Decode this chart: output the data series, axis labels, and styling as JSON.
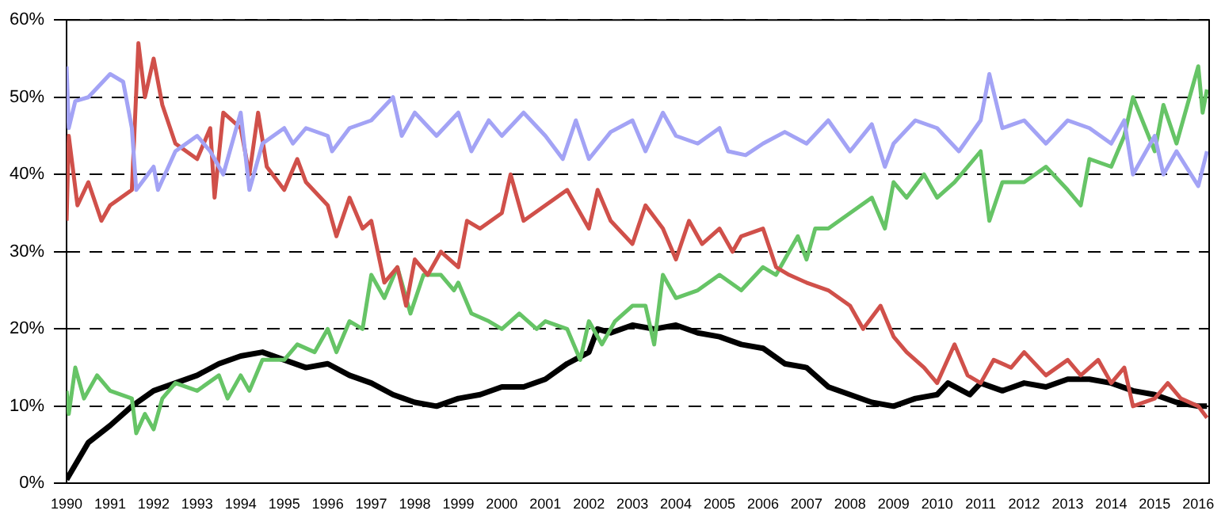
{
  "chart_data": {
    "type": "line",
    "xlim": [
      1990,
      2016.25
    ],
    "ylim": [
      0,
      60
    ],
    "xticks": [
      1990,
      1991,
      1992,
      1993,
      1994,
      1995,
      1996,
      1997,
      1998,
      1999,
      2000,
      2001,
      2002,
      2003,
      2004,
      2005,
      2006,
      2007,
      2008,
      2009,
      2010,
      2011,
      2012,
      2013,
      2014,
      2015,
      2016
    ],
    "yticks": [
      {
        "value": 0,
        "label": "0%"
      },
      {
        "value": 10,
        "label": "10%"
      },
      {
        "value": 20,
        "label": "20%"
      },
      {
        "value": 30,
        "label": "30%"
      },
      {
        "value": 40,
        "label": "40%"
      },
      {
        "value": 50,
        "label": "50%"
      },
      {
        "value": 60,
        "label": "60%"
      }
    ],
    "grid": "y",
    "legend": false,
    "marker": "none",
    "line_style": "solid",
    "series": [
      {
        "color": "#a3a3f5",
        "x": [
          1990,
          1990.05,
          1990.2,
          1990.5,
          1991,
          1991.3,
          1991.5,
          1991.6,
          1992,
          1992.1,
          1992.5,
          1993,
          1993.3,
          1993.6,
          1994,
          1994.2,
          1994.5,
          1995,
          1995.2,
          1995.5,
          1996,
          1996.1,
          1996.5,
          1997,
          1997.5,
          1997.7,
          1998,
          1998.5,
          1999,
          1999.3,
          1999.7,
          2000,
          2000.5,
          2001,
          2001.4,
          2001.7,
          2002,
          2002.5,
          2003,
          2003.3,
          2003.7,
          2004,
          2004.5,
          2005,
          2005.2,
          2005.6,
          2006,
          2006.5,
          2007,
          2007.5,
          2008,
          2008.5,
          2008.8,
          2009,
          2009.5,
          2010,
          2010.5,
          2011,
          2011.2,
          2011.5,
          2012,
          2012.5,
          2013,
          2013.5,
          2014,
          2014.3,
          2014.5,
          2015,
          2015.2,
          2015.5,
          2016,
          2016.2
        ],
        "values": [
          54,
          46,
          49.5,
          50,
          53,
          52,
          46,
          38,
          41,
          38,
          43,
          45,
          43,
          40,
          48,
          38,
          44,
          46,
          44,
          46,
          45,
          43,
          46,
          47,
          50,
          45,
          48,
          45,
          48,
          43,
          47,
          45,
          48,
          45,
          42,
          47,
          42,
          45.5,
          47,
          43,
          48,
          45,
          44,
          46,
          43,
          42.5,
          44,
          45.5,
          44,
          47,
          43,
          46.5,
          41,
          44,
          47,
          46,
          43,
          47,
          53,
          46,
          47,
          44,
          47,
          46,
          44,
          47,
          40,
          45,
          40,
          43,
          38.5,
          43
        ]
      },
      {
        "color": "#d0504a",
        "x": [
          1990,
          1990.05,
          1990.25,
          1990.5,
          1990.8,
          1991,
          1991.5,
          1991.65,
          1991.8,
          1992,
          1992.2,
          1992.5,
          1993,
          1993.3,
          1993.4,
          1993.6,
          1994,
          1994.2,
          1994.4,
          1994.6,
          1995,
          1995.3,
          1995.5,
          1996,
          1996.2,
          1996.5,
          1996.8,
          1997,
          1997.3,
          1997.6,
          1997.8,
          1998,
          1998.3,
          1998.6,
          1999,
          1999.2,
          1999.5,
          2000,
          2000.2,
          2000.5,
          2001,
          2001.5,
          2002,
          2002.2,
          2002.5,
          2003,
          2003.3,
          2003.7,
          2004,
          2004.3,
          2004.6,
          2005,
          2005.3,
          2005.5,
          2006,
          2006.3,
          2006.6,
          2007,
          2007.5,
          2008,
          2008.3,
          2008.7,
          2009,
          2009.3,
          2009.7,
          2010,
          2010.4,
          2010.7,
          2011,
          2011.3,
          2011.7,
          2012,
          2012.5,
          2013,
          2013.3,
          2013.7,
          2014,
          2014.3,
          2014.5,
          2015,
          2015.3,
          2015.6,
          2016,
          2016.2
        ],
        "values": [
          34,
          45,
          36,
          39,
          34,
          36,
          38,
          57,
          50,
          55,
          49,
          44,
          42,
          46,
          37,
          48,
          46,
          40,
          48,
          41,
          38,
          42,
          39,
          36,
          32,
          37,
          33,
          34,
          26,
          28,
          23,
          29,
          27,
          30,
          28,
          34,
          33,
          35,
          40,
          34,
          36,
          38,
          33,
          38,
          34,
          31,
          36,
          33,
          29,
          34,
          31,
          33,
          30,
          32,
          33,
          28,
          27,
          26,
          25,
          23,
          20,
          23,
          19,
          17,
          15,
          13,
          18,
          14,
          13,
          16,
          15,
          17,
          14,
          16,
          14,
          16,
          13,
          15,
          10,
          11,
          13,
          11,
          10,
          8.5
        ]
      },
      {
        "color": "#66c466",
        "x": [
          1990,
          1990.05,
          1990.2,
          1990.4,
          1990.7,
          1991,
          1991.5,
          1991.6,
          1991.8,
          1992,
          1992.2,
          1992.5,
          1993,
          1993.5,
          1993.7,
          1994,
          1994.2,
          1994.5,
          1995,
          1995.3,
          1995.7,
          1996,
          1996.2,
          1996.5,
          1996.8,
          1997,
          1997.3,
          1997.6,
          1997.9,
          1998.2,
          1998.6,
          1998.9,
          1999,
          1999.3,
          1999.7,
          2000,
          2000.4,
          2000.8,
          2001,
          2001.5,
          2001.8,
          2002,
          2002.3,
          2002.6,
          2003,
          2003.3,
          2003.5,
          2003.7,
          2004,
          2004.5,
          2005,
          2005.5,
          2006,
          2006.3,
          2006.8,
          2007,
          2007.2,
          2007.5,
          2008,
          2008.5,
          2008.8,
          2009,
          2009.3,
          2009.7,
          2010,
          2010.4,
          2010.7,
          2011,
          2011.2,
          2011.5,
          2012,
          2012.5,
          2013,
          2013.3,
          2013.5,
          2014,
          2014.3,
          2014.5,
          2015,
          2015.2,
          2015.5,
          2016,
          2016.1,
          2016.2
        ],
        "values": [
          12,
          9,
          15,
          11,
          14,
          12,
          11,
          6.5,
          9,
          7,
          11,
          13,
          12,
          14,
          11,
          14,
          12,
          16,
          16,
          18,
          17,
          20,
          17,
          21,
          20,
          27,
          24,
          28,
          22,
          27,
          27,
          25,
          26,
          22,
          21,
          20,
          22,
          20,
          21,
          20,
          16,
          21,
          18,
          21,
          23,
          23,
          18,
          27,
          24,
          25,
          27,
          25,
          28,
          27,
          32,
          29,
          33,
          33,
          35,
          37,
          33,
          39,
          37,
          40,
          37,
          39,
          41,
          43,
          34,
          39,
          39,
          41,
          38,
          36,
          42,
          41,
          45,
          50,
          43,
          49,
          44,
          54,
          48,
          51
        ]
      },
      {
        "color": "#000000",
        "x": [
          1990,
          1990.5,
          1991,
          1991.5,
          1992,
          1992.5,
          1993,
          1993.5,
          1994,
          1994.5,
          1995,
          1995.5,
          1996,
          1996.5,
          1997,
          1997.5,
          1998,
          1998.5,
          1999,
          1999.5,
          2000,
          2000.5,
          2001,
          2001.5,
          2002,
          2002.2,
          2002.5,
          2003,
          2003.5,
          2004,
          2004.5,
          2005,
          2005.5,
          2006,
          2006.5,
          2007,
          2007.5,
          2008,
          2008.5,
          2009,
          2009.5,
          2010,
          2010.25,
          2010.75,
          2011,
          2011.5,
          2012,
          2012.5,
          2013,
          2013.5,
          2014,
          2014.5,
          2015,
          2015.5,
          2016,
          2016.2
        ],
        "values": [
          0.5,
          5.3,
          7.5,
          10,
          12,
          13,
          14,
          15.5,
          16.5,
          17,
          16,
          15,
          15.5,
          14,
          13,
          11.5,
          10.5,
          10,
          11,
          11.5,
          12.5,
          12.5,
          13.5,
          15.5,
          17,
          20,
          19.5,
          20.5,
          20,
          20.5,
          19.5,
          19,
          18,
          17.5,
          15.5,
          15,
          12.5,
          11.5,
          10.5,
          10,
          11,
          11.5,
          13,
          11.5,
          13,
          12,
          13,
          12.5,
          13.5,
          13.5,
          13,
          12,
          11.5,
          10.5,
          10,
          10
        ]
      }
    ]
  }
}
